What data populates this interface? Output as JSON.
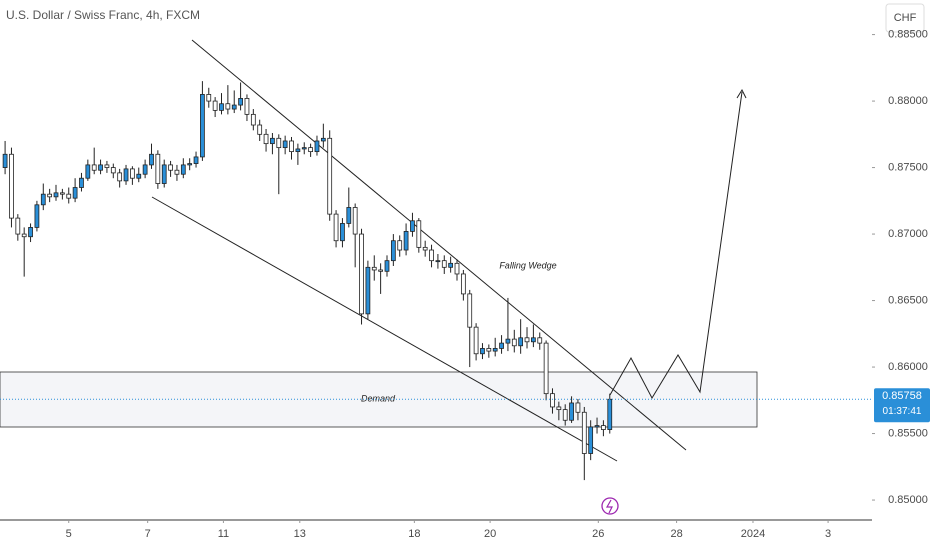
{
  "chart_data": {
    "type": "candlestick",
    "title": "U.S. Dollar / Swiss Franc, 4h, FXCM",
    "currency": "CHF",
    "countdown": "01:37:41",
    "annotations": [
      "Falling Wedge",
      "Demand"
    ],
    "up_color": "#2a8fd8",
    "down_color": "#ffffff",
    "wick_color": "#222222",
    "open": [
      0.875,
      0.876,
      0.8712,
      0.87,
      0.8698,
      0.8705,
      0.8722,
      0.873,
      0.8728,
      0.8731,
      0.873,
      0.8727,
      0.8735,
      0.8742,
      0.8752,
      0.8748,
      0.8752,
      0.875,
      0.8746,
      0.874,
      0.8749,
      0.8742,
      0.8745,
      0.8752,
      0.876,
      0.8738,
      0.8752,
      0.8748,
      0.8745,
      0.8752,
      0.8753,
      0.8758,
      0.8805,
      0.88,
      0.8793,
      0.8798,
      0.8794,
      0.8797,
      0.8802,
      0.879,
      0.8782,
      0.8775,
      0.8768,
      0.8772,
      0.8765,
      0.877,
      0.8762,
      0.8764,
      0.8765,
      0.8762,
      0.877,
      0.8772,
      0.8715,
      0.8695,
      0.8708,
      0.872,
      0.87,
      0.864,
      0.8675,
      0.8673,
      0.8672,
      0.868,
      0.8695,
      0.8688,
      0.8702,
      0.871,
      0.869,
      0.8688,
      0.868,
      0.868,
      0.8675,
      0.8678,
      0.867,
      0.8655,
      0.863,
      0.861,
      0.8614,
      0.8612,
      0.8614,
      0.8618,
      0.8621,
      0.8616,
      0.8622,
      0.8619,
      0.8622,
      0.8618,
      0.858,
      0.857,
      0.8568,
      0.856,
      0.8573,
      0.8566,
      0.8535,
      0.8555,
      0.8556,
      0.8553
    ],
    "high": [
      0.877,
      0.8765,
      0.8715,
      0.8705,
      0.8708,
      0.8725,
      0.8738,
      0.8734,
      0.8737,
      0.8734,
      0.8735,
      0.8742,
      0.8746,
      0.8756,
      0.8765,
      0.8756,
      0.8755,
      0.8753,
      0.8749,
      0.8752,
      0.8751,
      0.875,
      0.8756,
      0.8768,
      0.8763,
      0.8756,
      0.8755,
      0.8752,
      0.8757,
      0.8757,
      0.8762,
      0.8815,
      0.881,
      0.8803,
      0.8806,
      0.8812,
      0.8808,
      0.8814,
      0.8805,
      0.8794,
      0.8786,
      0.8779,
      0.8776,
      0.8775,
      0.8774,
      0.8773,
      0.8768,
      0.8769,
      0.8768,
      0.8774,
      0.8783,
      0.8778,
      0.8718,
      0.8712,
      0.8735,
      0.8723,
      0.8704,
      0.868,
      0.8684,
      0.8678,
      0.8684,
      0.87,
      0.8699,
      0.8708,
      0.8716,
      0.8712,
      0.8695,
      0.8692,
      0.8685,
      0.8684,
      0.8683,
      0.8681,
      0.8673,
      0.8658,
      0.8633,
      0.8618,
      0.8617,
      0.8622,
      0.8624,
      0.8652,
      0.8628,
      0.8636,
      0.863,
      0.8632,
      0.8626,
      0.862,
      0.8584,
      0.8574,
      0.8572,
      0.8578,
      0.8576,
      0.857,
      0.856,
      0.8562,
      0.856,
      0.858
    ],
    "low": [
      0.8745,
      0.8705,
      0.8695,
      0.8668,
      0.8694,
      0.8702,
      0.8718,
      0.8724,
      0.8725,
      0.8726,
      0.8723,
      0.8724,
      0.8732,
      0.874,
      0.8745,
      0.8745,
      0.8746,
      0.8742,
      0.8735,
      0.8737,
      0.8737,
      0.8739,
      0.8742,
      0.8749,
      0.8734,
      0.8735,
      0.8743,
      0.874,
      0.8742,
      0.8748,
      0.875,
      0.8755,
      0.8795,
      0.8788,
      0.879,
      0.879,
      0.8791,
      0.8793,
      0.8785,
      0.8778,
      0.877,
      0.8762,
      0.876,
      0.873,
      0.876,
      0.8756,
      0.8752,
      0.876,
      0.8758,
      0.8759,
      0.8765,
      0.871,
      0.869,
      0.869,
      0.8705,
      0.8675,
      0.8632,
      0.8636,
      0.8665,
      0.8655,
      0.8668,
      0.8676,
      0.8683,
      0.8684,
      0.8698,
      0.8686,
      0.8683,
      0.8675,
      0.8674,
      0.867,
      0.8671,
      0.8665,
      0.865,
      0.86,
      0.8605,
      0.8606,
      0.8607,
      0.8608,
      0.861,
      0.8612,
      0.8611,
      0.861,
      0.8614,
      0.8615,
      0.8613,
      0.8575,
      0.8565,
      0.856,
      0.8556,
      0.8558,
      0.856,
      0.8515,
      0.853,
      0.855,
      0.8548,
      0.855
    ],
    "close": [
      0.876,
      0.8712,
      0.87,
      0.8698,
      0.8705,
      0.8722,
      0.873,
      0.8728,
      0.8731,
      0.873,
      0.8727,
      0.8735,
      0.8742,
      0.8752,
      0.8748,
      0.8752,
      0.875,
      0.8746,
      0.874,
      0.8749,
      0.8742,
      0.8745,
      0.8752,
      0.876,
      0.8738,
      0.8752,
      0.8748,
      0.8745,
      0.8752,
      0.8753,
      0.8758,
      0.8805,
      0.88,
      0.8793,
      0.8798,
      0.8794,
      0.8797,
      0.8802,
      0.879,
      0.8782,
      0.8775,
      0.8768,
      0.8772,
      0.8765,
      0.877,
      0.8762,
      0.8764,
      0.8765,
      0.8762,
      0.877,
      0.8772,
      0.8715,
      0.8695,
      0.8708,
      0.872,
      0.87,
      0.864,
      0.8675,
      0.8673,
      0.8672,
      0.868,
      0.8695,
      0.8688,
      0.8702,
      0.871,
      0.869,
      0.8688,
      0.868,
      0.868,
      0.8675,
      0.8678,
      0.867,
      0.8655,
      0.863,
      0.861,
      0.8614,
      0.8612,
      0.8614,
      0.8618,
      0.8621,
      0.8616,
      0.8622,
      0.8619,
      0.8622,
      0.8618,
      0.858,
      0.857,
      0.8568,
      0.856,
      0.8573,
      0.8566,
      0.8535,
      0.8555,
      0.8556,
      0.8553,
      0.85758
    ],
    "xlim": [
      -0.8,
      136.2
    ],
    "xticks": [
      {
        "value": 10,
        "label": "5"
      },
      {
        "value": 22.4,
        "label": "7"
      },
      {
        "value": 34.3,
        "label": "11"
      },
      {
        "value": 46.3,
        "label": "13"
      },
      {
        "value": 64.3,
        "label": "18"
      },
      {
        "value": 76.2,
        "label": "20"
      },
      {
        "value": 93.2,
        "label": "26"
      },
      {
        "value": 105.5,
        "label": "28"
      },
      {
        "value": 117.5,
        "label": "2024"
      },
      {
        "value": 129.3,
        "label": "3"
      }
    ],
    "ylim": [
      0.8485,
      0.8876
    ],
    "yticks": [
      {
        "value": 0.85,
        "label": "0.85000"
      },
      {
        "value": 0.855,
        "label": "0.85500"
      },
      {
        "value": 0.86,
        "label": "0.86000"
      },
      {
        "value": 0.865,
        "label": "0.86500"
      },
      {
        "value": 0.87,
        "label": "0.87000"
      },
      {
        "value": 0.875,
        "label": "0.87500"
      },
      {
        "value": 0.88,
        "label": "0.88000"
      },
      {
        "value": 0.885,
        "label": "0.88500"
      }
    ],
    "grid": false
  }
}
